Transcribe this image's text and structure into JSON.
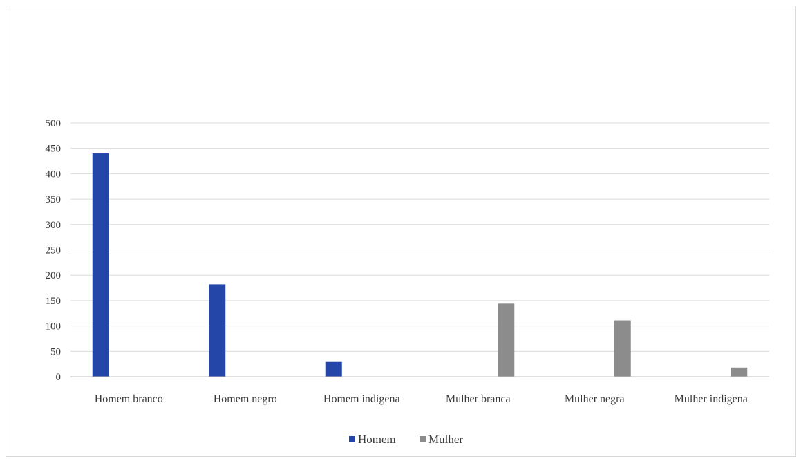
{
  "chart_data": {
    "type": "bar",
    "categories": [
      "Homem branco",
      "Homem negro",
      "Homem indigena",
      "Mulher branca",
      "Mulher negra",
      "Mulher indigena"
    ],
    "series": [
      {
        "name": "Homem",
        "color": "#2446a8",
        "values": [
          440,
          182,
          29,
          null,
          null,
          null
        ]
      },
      {
        "name": "Mulher",
        "color": "#8c8c8c",
        "values": [
          null,
          null,
          null,
          144,
          111,
          18
        ]
      }
    ],
    "ylim": [
      0,
      500
    ],
    "yticks": [
      "0",
      "50",
      "100",
      "150",
      "200",
      "250",
      "300",
      "350",
      "400",
      "450",
      "500"
    ],
    "grid": true,
    "legend_position": "bottom-center",
    "title": "",
    "xlabel": "",
    "ylabel": ""
  }
}
